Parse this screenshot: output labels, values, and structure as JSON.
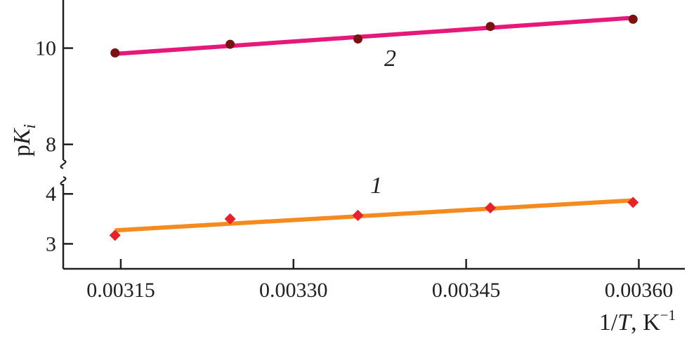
{
  "chart_data": {
    "type": "line",
    "title": "",
    "x_axis": {
      "label": "1/T, K⁻¹",
      "label_parts": {
        "prefix": "1/",
        "var": "T",
        "unit": ", K",
        "sup": "−1"
      },
      "ticks": [
        0.00315,
        0.0033,
        0.00345,
        0.0036
      ],
      "tick_labels": [
        "0.00315",
        "0.00330",
        "0.00345",
        "0.00360"
      ],
      "range": [
        0.0031,
        0.00364
      ]
    },
    "y_axis": {
      "label": "pKi",
      "label_parts": {
        "prefix": "p",
        "var": "K",
        "sub": "i"
      },
      "broken": true,
      "segments": [
        {
          "range": [
            2.5,
            4.2
          ],
          "ticks": [
            3,
            4
          ],
          "tick_labels": [
            "3",
            "4"
          ]
        },
        {
          "range": [
            7.5,
            11.0
          ],
          "ticks": [
            8,
            10
          ],
          "tick_labels": [
            "8",
            "10"
          ]
        }
      ]
    },
    "series": [
      {
        "name": "1",
        "segment": 0,
        "marker": "diamond",
        "marker_color": "#e8222a",
        "line_color": "#f58a1f",
        "x": [
          0.003145,
          0.003245,
          0.003356,
          0.003471,
          0.003595
        ],
        "y": [
          3.17,
          3.5,
          3.57,
          3.72,
          3.83
        ],
        "fit": {
          "x": [
            0.003145,
            0.003595
          ],
          "y": [
            3.27,
            3.87
          ]
        }
      },
      {
        "name": "2",
        "segment": 1,
        "marker": "circle",
        "marker_color": "#7b1113",
        "line_color": "#e6197b",
        "x": [
          0.003145,
          0.003245,
          0.003356,
          0.003471,
          0.003595
        ],
        "y": [
          9.9,
          10.08,
          10.19,
          10.45,
          10.6
        ],
        "fit": {
          "x": [
            0.003145,
            0.003595
          ],
          "y": [
            9.88,
            10.63
          ]
        }
      }
    ]
  }
}
